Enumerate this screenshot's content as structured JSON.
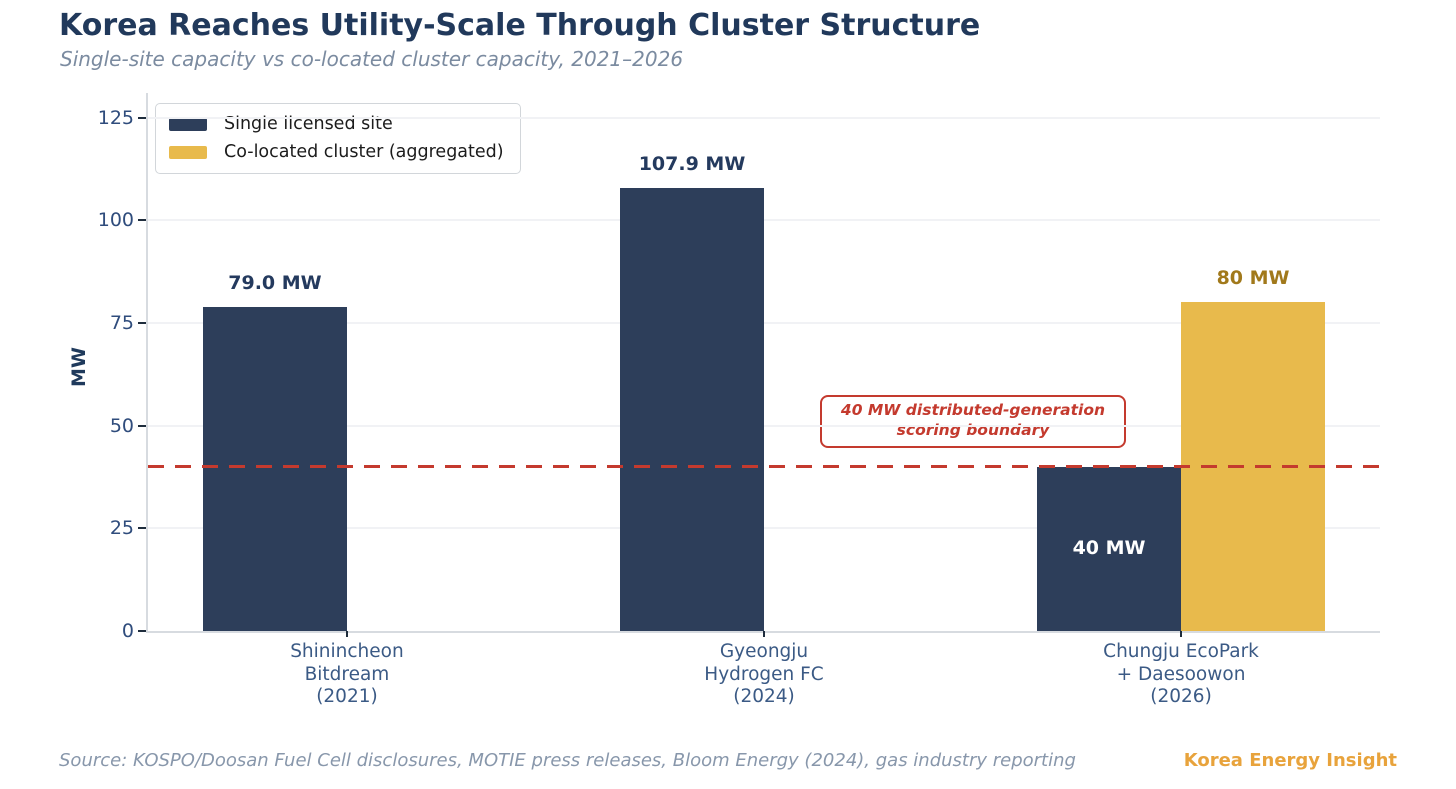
{
  "header": {
    "title": "Korea Reaches Utility-Scale Through Cluster Structure",
    "subtitle": "Single-site capacity vs co-located cluster capacity, 2021–2026"
  },
  "legend": {
    "items": [
      {
        "label": "Single licensed site",
        "color_key": "navy"
      },
      {
        "label": "Co-located cluster (aggregated)",
        "color_key": "gold"
      }
    ]
  },
  "chart_data": {
    "type": "bar",
    "title": "Korea Reaches Utility-Scale Through Cluster Structure",
    "xlabel": "",
    "ylabel": "MW",
    "ylim": [
      0,
      131
    ],
    "yticks": [
      0,
      25,
      50,
      75,
      100,
      125
    ],
    "grid": "horizontal, very light",
    "legend_position": "upper left",
    "categories": [
      {
        "lines": [
          "Shinincheon",
          "Bitdream",
          "(2021)"
        ]
      },
      {
        "lines": [
          "Gyeongju",
          "Hydrogen FC",
          "(2024)"
        ]
      },
      {
        "lines": [
          "Chungju EcoPark",
          "+ Daesoowon",
          "(2026)"
        ]
      }
    ],
    "series": [
      {
        "name": "Single licensed site",
        "color_key": "navy",
        "values": [
          79.0,
          107.9,
          40
        ],
        "labels": [
          "79.0 MW",
          "107.9 MW",
          "40 MW"
        ],
        "label_positions": [
          "above",
          "above",
          "inside"
        ]
      },
      {
        "name": "Co-located cluster (aggregated)",
        "color_key": "gold",
        "values": [
          null,
          null,
          80
        ],
        "labels": [
          null,
          null,
          "80 MW"
        ],
        "label_positions": [
          null,
          null,
          "above"
        ]
      }
    ],
    "reference_line": {
      "value": 40,
      "label": "40 MW distributed-generation scoring boundary",
      "label_lines": [
        "40 MW distributed-generation",
        "scoring boundary"
      ]
    }
  },
  "colors": {
    "navy": "#2d3e5a",
    "gold": "#e8ba4c",
    "red": "#c43a2e",
    "navy_label": "#243a5e",
    "gold_label": "#a1791b",
    "inside_label": "#ffffff",
    "title": "#21395b",
    "subtitle": "#7b8ba0",
    "ytick": "#2f4c7c",
    "xtick": "#3b5a85",
    "brand": "#e8a33c"
  },
  "footer": {
    "source": "Source: KOSPO/Doosan Fuel Cell disclosures, MOTIE press releases, Bloom Energy (2024), gas industry reporting",
    "brand": "Korea Energy Insight"
  }
}
